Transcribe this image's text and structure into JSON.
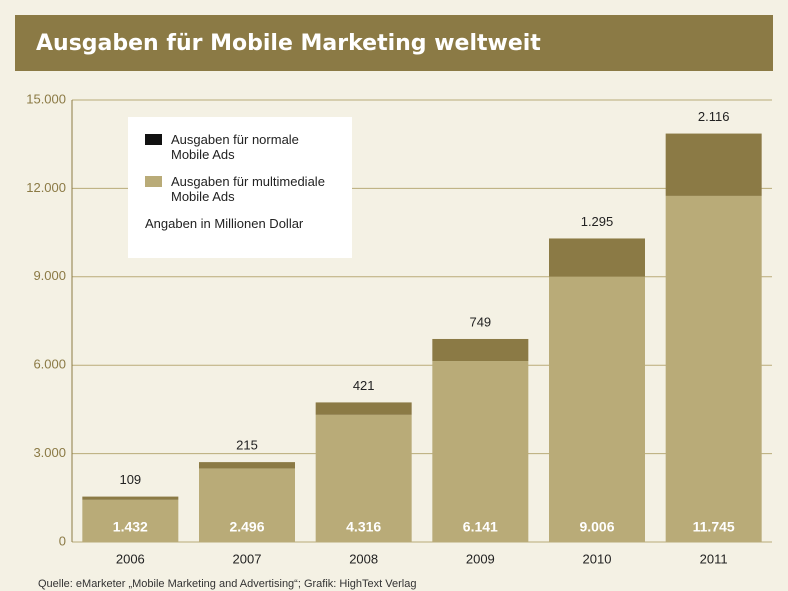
{
  "chart_data": {
    "type": "stacked_bar",
    "title": "Ausgaben für Mobile Marketing weltweit",
    "annotation": "Angaben in Millionen Dollar",
    "source": "Quelle: eMarketer „Mobile Marketing and Advertising“; Grafik: HighText Verlag",
    "categories": [
      "2006",
      "2007",
      "2008",
      "2009",
      "2010",
      "2011"
    ],
    "series": [
      {
        "name": "Ausgaben für normale Mobile Ads",
        "color": "#8b7a45",
        "legend_color": "#111111",
        "values": [
          109,
          215,
          421,
          749,
          1295,
          2116
        ],
        "value_labels": [
          "109",
          "215",
          "421",
          "749",
          "1.295",
          "2.116"
        ]
      },
      {
        "name": "Ausgaben für multimediale Mobile Ads",
        "color": "#b9ab78",
        "legend_color": "#b9ab78",
        "values": [
          1432,
          2496,
          4316,
          6141,
          9006,
          11745
        ],
        "value_labels": [
          "1.432",
          "2.496",
          "4.316",
          "6.141",
          "9.006",
          "11.745"
        ]
      }
    ],
    "ylim": [
      0,
      15000
    ],
    "yticks": [
      0,
      {
        "value": 3000,
        "label": "3.000"
      },
      {
        "value": 6000,
        "label": "6.000"
      },
      {
        "value": 9000,
        "label": "9.000"
      },
      {
        "value": 12000,
        "label": "12.000"
      },
      {
        "value": 15000,
        "label": "15.000"
      }
    ],
    "grid": true
  }
}
